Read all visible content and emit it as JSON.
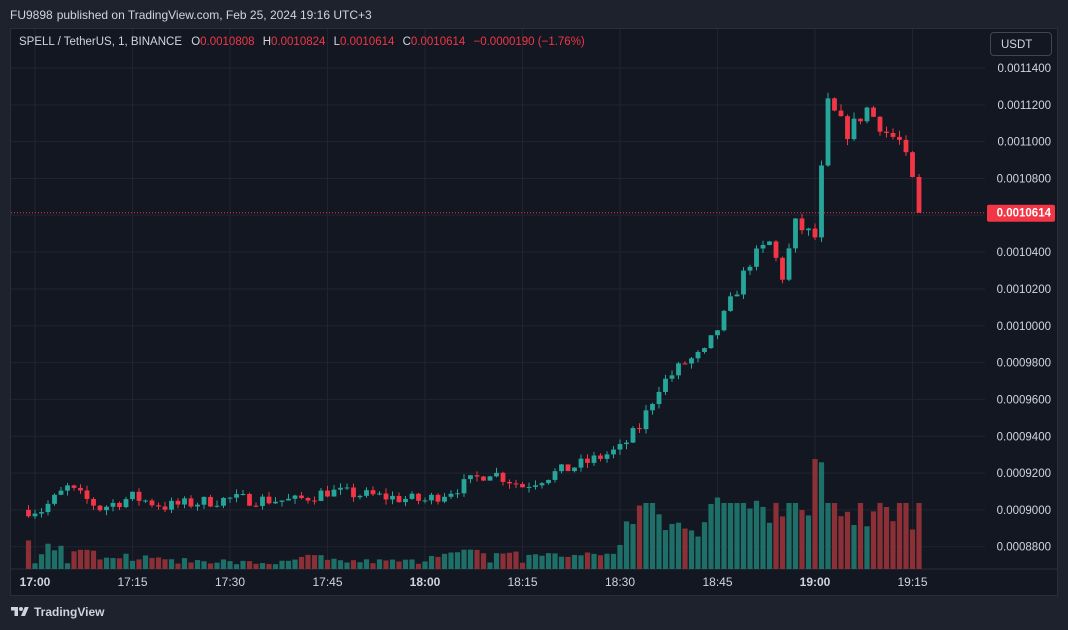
{
  "header": {
    "author": "FU9898",
    "published_text": "published on TradingView.com, Feb 25, 2024 19:16 UTC+3"
  },
  "legend": {
    "symbol": "SPELL / TetherUS, 1, BINANCE",
    "open_key": "O",
    "open": "0.0010808",
    "high_key": "H",
    "high": "0.0010824",
    "low_key": "L",
    "low": "0.0010614",
    "close_key": "C",
    "close": "0.0010614",
    "change": "−0.0000190 (−1.76%)"
  },
  "currency_button": {
    "label": "USDT"
  },
  "footer": {
    "brand": "TradingView",
    "logo_icon": "tradingview-logo-icon"
  },
  "colors": {
    "up": "#26a69a",
    "down": "#f23645",
    "up_volume": "#1f6f69",
    "down_volume": "#8a3036",
    "grid": "#1f2430",
    "background": "#131722"
  },
  "chart_data": {
    "type": "candlestick",
    "timeframe_minutes": 1,
    "x_tick_labels": [
      "17:00",
      "17:15",
      "17:30",
      "17:45",
      "18:00",
      "18:15",
      "18:30",
      "18:45",
      "19:00",
      "19:15"
    ],
    "bold_ticks": [
      "17:00",
      "18:00",
      "19:00"
    ],
    "y_tick_labels": [
      "0.0011400",
      "0.0011200",
      "0.0011000",
      "0.0010800",
      "0.0010600",
      "0.0010400",
      "0.0010200",
      "0.0010000",
      "0.0009800",
      "0.0009600",
      "0.0009400",
      "0.0009200",
      "0.0009000",
      "0.0008800"
    ],
    "ylim": [
      0.00086532,
      0.00114395
    ],
    "last_price": "0.0010614",
    "time_range": [
      "16:59",
      "19:16"
    ],
    "anchors": [
      {
        "t": "16:59",
        "p": 0.0009
      },
      {
        "t": "17:01",
        "p": 0.0009
      },
      {
        "t": "17:05",
        "p": 0.000912
      },
      {
        "t": "17:10",
        "p": 0.000901
      },
      {
        "t": "17:15",
        "p": 0.000907
      },
      {
        "t": "17:20",
        "p": 0.000902
      },
      {
        "t": "17:30",
        "p": 0.000906
      },
      {
        "t": "17:40",
        "p": 0.000905
      },
      {
        "t": "17:45",
        "p": 0.00091
      },
      {
        "t": "18:00",
        "p": 0.000905
      },
      {
        "t": "18:05",
        "p": 0.000912
      },
      {
        "t": "18:10",
        "p": 0.000921
      },
      {
        "t": "18:15",
        "p": 0.000913
      },
      {
        "t": "18:20",
        "p": 0.00092
      },
      {
        "t": "18:25",
        "p": 0.000926
      },
      {
        "t": "18:30",
        "p": 0.000933
      },
      {
        "t": "18:33",
        "p": 0.000945
      },
      {
        "t": "18:36",
        "p": 0.000967
      },
      {
        "t": "18:40",
        "p": 0.00098
      },
      {
        "t": "18:43",
        "p": 0.000985
      },
      {
        "t": "18:46",
        "p": 0.001005
      },
      {
        "t": "18:50",
        "p": 0.001035
      },
      {
        "t": "18:53",
        "p": 0.001045
      },
      {
        "t": "18:55",
        "p": 0.001027
      },
      {
        "t": "18:57",
        "p": 0.001055
      },
      {
        "t": "19:00",
        "p": 0.001048
      },
      {
        "t": "19:02",
        "p": 0.00112
      },
      {
        "t": "19:05",
        "p": 0.001105
      },
      {
        "t": "19:08",
        "p": 0.001118
      },
      {
        "t": "19:11",
        "p": 0.001105
      },
      {
        "t": "19:13",
        "p": 0.0011
      },
      {
        "t": "19:15",
        "p": 0.0010808
      },
      {
        "t": "19:16",
        "p": 0.0010614
      }
    ],
    "volume_spikes": [
      {
        "t": "19:00",
        "v": 1.0
      },
      {
        "t": "19:01",
        "v": 0.97
      },
      {
        "t": "18:51",
        "v": 0.62
      },
      {
        "t": "18:50",
        "v": 0.55
      },
      {
        "t": "18:45",
        "v": 0.65
      },
      {
        "t": "18:53",
        "v": 0.42
      },
      {
        "t": "19:04",
        "v": 0.48
      },
      {
        "t": "19:05",
        "v": 0.52
      },
      {
        "t": "19:06",
        "v": 0.4
      },
      {
        "t": "19:15",
        "v": 0.36
      },
      {
        "t": "16:59",
        "v": 0.26
      },
      {
        "t": "17:03",
        "v": 0.17
      }
    ]
  }
}
